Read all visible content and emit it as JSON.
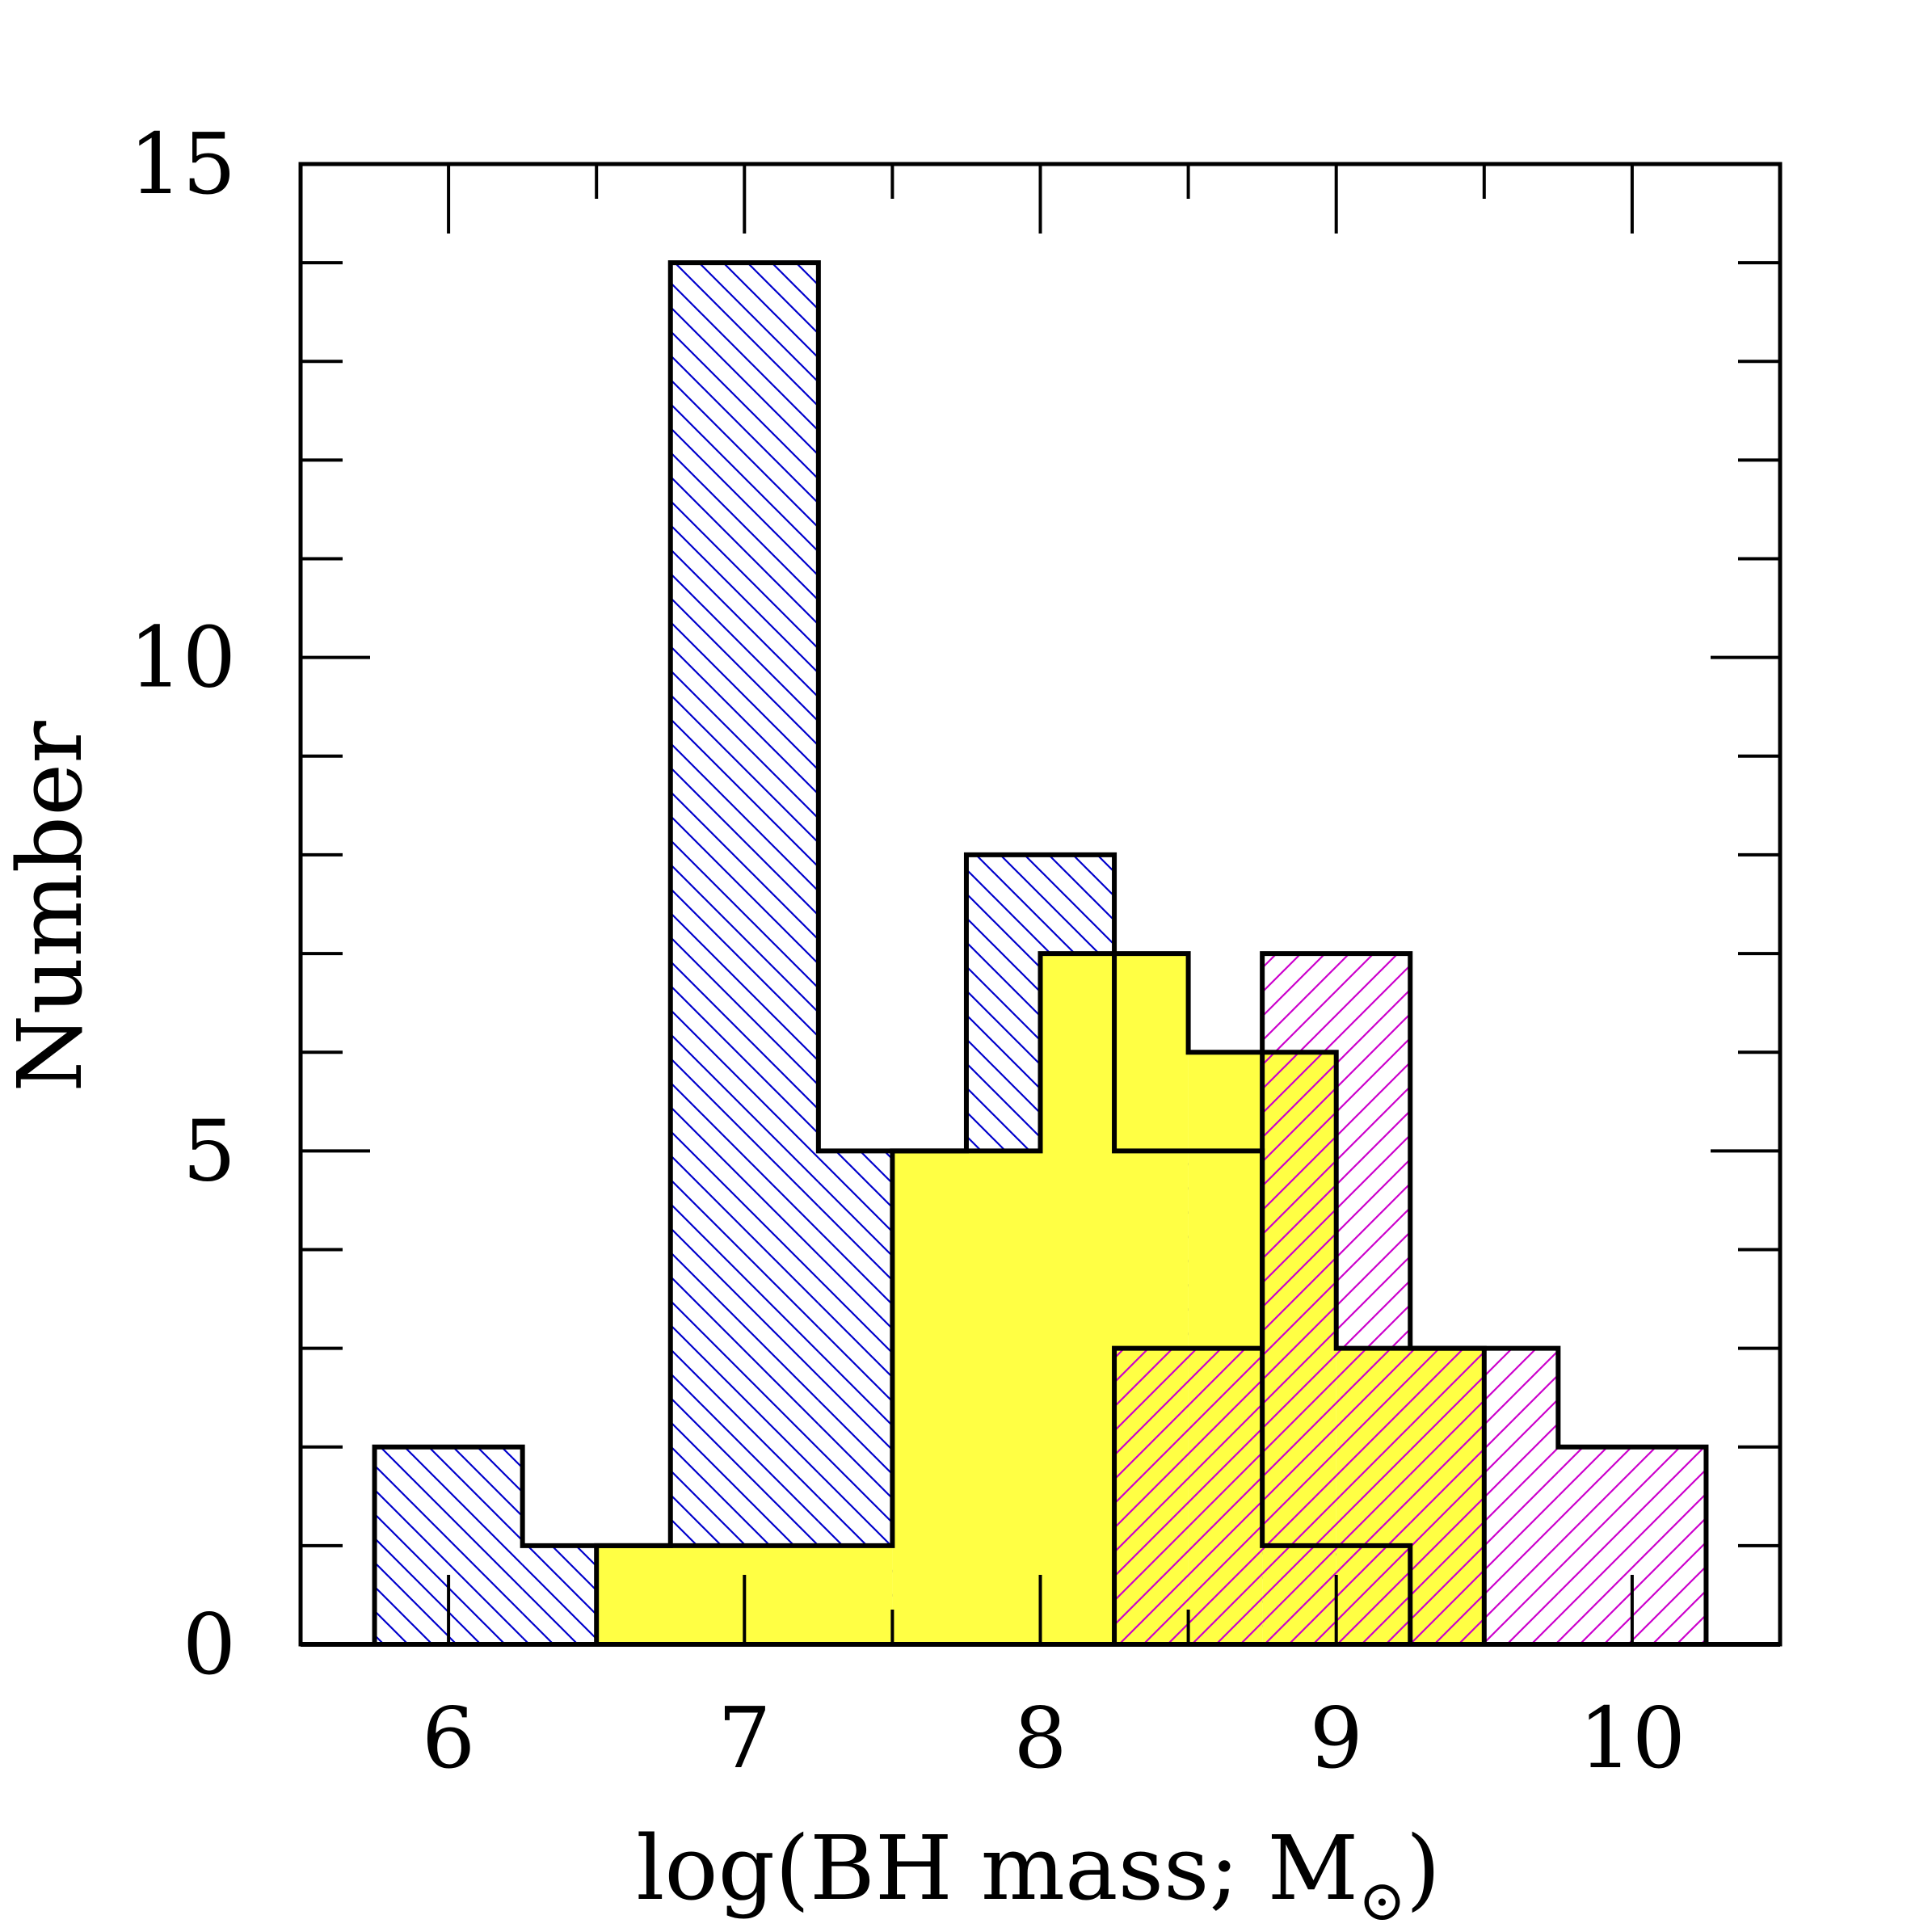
{
  "chart_data": {
    "type": "histogram",
    "title": "",
    "xlabel": "log(BH mass; M⊙)",
    "xlabel_text": "log(BH mass; M",
    "xlabel_sub": "⊙",
    "xlabel_close": ")",
    "ylabel": "Number",
    "xlim": [
      5.5,
      10.5
    ],
    "ylim": [
      0,
      15
    ],
    "x_ticks": [
      6,
      7,
      8,
      9,
      10
    ],
    "x_tick_labels": [
      "6",
      "7",
      "8",
      "9",
      "10"
    ],
    "y_ticks": [
      0,
      5,
      10,
      15
    ],
    "y_tick_labels": [
      "0",
      "5",
      "10",
      "15"
    ],
    "y_minor_step": 1,
    "x_minor_step": 0.5,
    "series": [
      {
        "name": "blue-hatched",
        "fill": "hatch-back",
        "hatch_color": "#0000cc",
        "bins": [
          {
            "x0": 5.75,
            "x1": 6.25,
            "count": 2
          },
          {
            "x0": 6.25,
            "x1": 6.75,
            "count": 1
          },
          {
            "x0": 6.75,
            "x1": 7.25,
            "count": 14
          },
          {
            "x0": 7.25,
            "x1": 7.75,
            "count": 5
          },
          {
            "x0": 7.75,
            "x1": 8.25,
            "count": 8
          },
          {
            "x0": 8.25,
            "x1": 8.75,
            "count": 5
          },
          {
            "x0": 8.75,
            "x1": 9.25,
            "count": 1
          }
        ]
      },
      {
        "name": "yellow-filled",
        "fill": "solid",
        "color": "#ffff44",
        "bins": [
          {
            "x0": 6.5,
            "x1": 7.5,
            "count": 1
          },
          {
            "x0": 7.5,
            "x1": 8.0,
            "count": 5
          },
          {
            "x0": 8.0,
            "x1": 8.5,
            "count": 7
          },
          {
            "x0": 8.5,
            "x1": 8.75,
            "count": 6
          },
          {
            "x0": 8.75,
            "x1": 9.0,
            "count": 6
          },
          {
            "x0": 9.0,
            "x1": 9.5,
            "count": 3
          }
        ]
      },
      {
        "name": "magenta-hatched",
        "fill": "hatch-forward",
        "hatch_color": "#cc00cc",
        "bins": [
          {
            "x0": 8.25,
            "x1": 8.75,
            "count": 3
          },
          {
            "x0": 8.75,
            "x1": 9.25,
            "count": 7
          },
          {
            "x0": 9.25,
            "x1": 9.75,
            "count": 3
          },
          {
            "x0": 9.75,
            "x1": 10.25,
            "count": 2
          }
        ]
      }
    ]
  }
}
